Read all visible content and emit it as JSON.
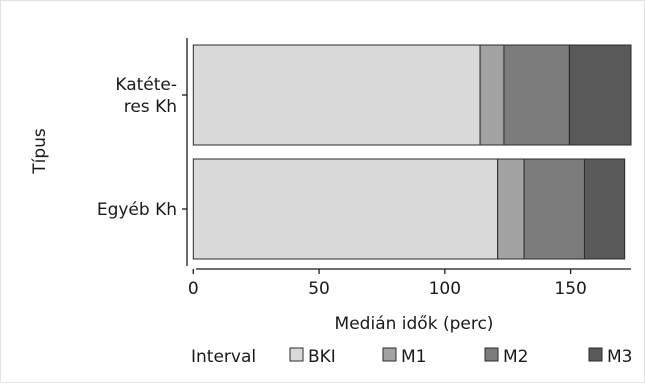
{
  "chart_data": {
    "type": "bar",
    "orientation": "horizontal",
    "stacked": true,
    "categories": [
      "Katéter- res Kh",
      "Egyéb Kh"
    ],
    "category_lines": [
      [
        "Katéte-",
        "res Kh"
      ],
      [
        "Egyéb Kh"
      ]
    ],
    "series": [
      {
        "name": "BKI",
        "values": [
          114,
          121
        ],
        "color": "#d9d9d9"
      },
      {
        "name": "M1",
        "values": [
          9.5,
          10.5
        ],
        "color": "#a3a3a3"
      },
      {
        "name": "M2",
        "values": [
          26,
          24
        ],
        "color": "#7c7c7c"
      },
      {
        "name": "M3",
        "values": [
          24.5,
          16
        ],
        "color": "#595959"
      }
    ],
    "xlabel": "Medián idők (perc)",
    "ylabel": "Típus",
    "xlim": [
      -2.5,
      174
    ],
    "xticks": [
      "0",
      "50",
      "100",
      "150"
    ],
    "grid": false,
    "legend_title": "Interval",
    "legend_position": "bottom"
  }
}
